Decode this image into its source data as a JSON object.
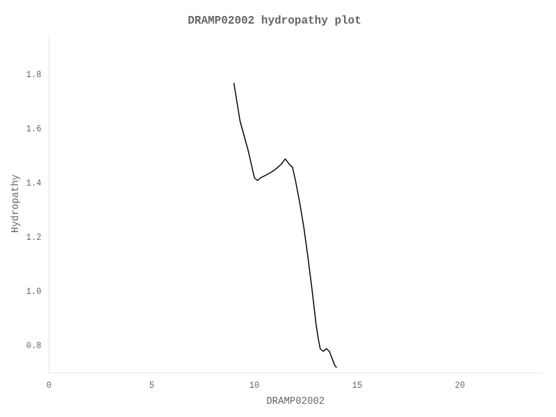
{
  "chart_data": {
    "type": "line",
    "title": "DRAMP02002 hydropathy plot",
    "xlabel": "DRAMP02002",
    "ylabel": "Hydropathy",
    "x": [
      9.0,
      9.3,
      9.7,
      10.0,
      10.15,
      10.3,
      10.55,
      10.8,
      11.0,
      11.15,
      11.3,
      11.5,
      11.7,
      11.85,
      12.0,
      12.2,
      12.4,
      12.6,
      12.8,
      13.0,
      13.1,
      13.2,
      13.35,
      13.5,
      13.65,
      13.8,
      13.9,
      14.0
    ],
    "values": [
      1.77,
      1.63,
      1.52,
      1.42,
      1.41,
      1.42,
      1.43,
      1.44,
      1.45,
      1.46,
      1.47,
      1.49,
      1.47,
      1.46,
      1.41,
      1.33,
      1.24,
      1.13,
      1.01,
      0.88,
      0.83,
      0.79,
      0.78,
      0.79,
      0.78,
      0.75,
      0.73,
      0.72
    ],
    "color": "#000000",
    "xlim": [
      0,
      24
    ],
    "xticks": [
      0,
      5,
      10,
      15,
      20
    ],
    "ylim": [
      0.7,
      1.95
    ],
    "yticks": [
      0.8,
      {
        "value": 1,
        "label": "1.0"
      },
      1.2,
      1.4,
      1.6,
      1.8
    ],
    "grid": false
  }
}
